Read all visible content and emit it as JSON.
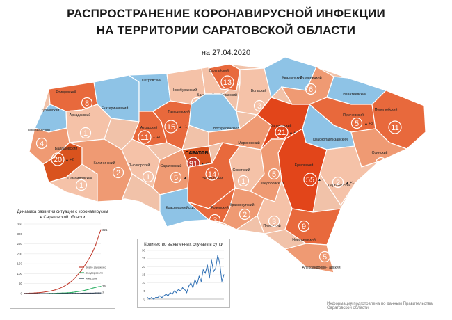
{
  "header": {
    "title_line1": "РАСПРОСТРАНЕНИЕ КОРОНАВИРУСНОЙ ИНФЕКЦИИ",
    "title_line2": "НА ТЕРРИТОРИИ САРАТОВСКОЙ ОБЛАСТИ",
    "date": "на 27.04.2020"
  },
  "colors": {
    "blue": "#8ec3e6",
    "light": "#f5c2a8",
    "mid": "#ef9a73",
    "dark": "#e8693c",
    "darker": "#d9531e",
    "hot": "#e2451a",
    "border": "#ffffff"
  },
  "districts": [
    {
      "name": "Ртищевский",
      "count": "8",
      "inc": "",
      "tone": "dark"
    },
    {
      "name": "Турковский",
      "count": "",
      "inc": "",
      "tone": "blue"
    },
    {
      "name": "Екатериновский",
      "count": "",
      "inc": "",
      "tone": "blue"
    },
    {
      "name": "Аркадакский",
      "count": "1",
      "inc": "",
      "tone": "light"
    },
    {
      "name": "Романовский",
      "count": "4",
      "inc": "",
      "tone": "mid"
    },
    {
      "name": "Балашовский",
      "count": "20",
      "inc": "+2",
      "tone": "darker"
    },
    {
      "name": "Самойловский",
      "count": "1",
      "inc": "",
      "tone": "light"
    },
    {
      "name": "Калининский",
      "count": "2",
      "inc": "",
      "tone": "mid"
    },
    {
      "name": "Петровский",
      "count": "",
      "inc": "",
      "tone": "blue"
    },
    {
      "name": "Аткарский",
      "count": "11",
      "inc": "+1",
      "tone": "dark"
    },
    {
      "name": "Лысогорский",
      "count": "1",
      "inc": "",
      "tone": "light"
    },
    {
      "name": "Новобурасский",
      "count": "1",
      "inc": "",
      "tone": "light"
    },
    {
      "name": "Татищевский",
      "count": "15",
      "inc": "+1",
      "tone": "dark"
    },
    {
      "name": "Базарно-Карабулакский",
      "count": "1",
      "inc": "",
      "tone": "light"
    },
    {
      "name": "Балтайский",
      "count": "13",
      "inc": "",
      "tone": "dark"
    },
    {
      "name": "Вольский",
      "count": "3",
      "inc": "",
      "tone": "light"
    },
    {
      "name": "Воскресенский",
      "count": "",
      "inc": "",
      "tone": "blue"
    },
    {
      "name": "Саратовский",
      "count": "5",
      "inc": "+1",
      "tone": "mid"
    },
    {
      "name": "Саратов",
      "count": "91",
      "inc": "+3",
      "tone": "darker"
    },
    {
      "name": "Энгельсский",
      "count": "14",
      "inc": "",
      "tone": "dark"
    },
    {
      "name": "Марксовский",
      "count": "4",
      "inc": "+1",
      "tone": "mid"
    },
    {
      "name": "Хвалынский",
      "count": "",
      "inc": "",
      "tone": "blue"
    },
    {
      "name": "Духовницкий",
      "count": "6",
      "inc": "",
      "tone": "mid"
    },
    {
      "name": "Ивантеевский",
      "count": "",
      "inc": "",
      "tone": "blue"
    },
    {
      "name": "Балаковский",
      "count": "21",
      "inc": "+4",
      "tone": "hot"
    },
    {
      "name": "Пугачевский",
      "count": "5",
      "inc": "+3",
      "tone": "dark"
    },
    {
      "name": "Перелюбский",
      "count": "11",
      "inc": "",
      "tone": "dark"
    },
    {
      "name": "Краснопартизанский",
      "count": "",
      "inc": "",
      "tone": "blue"
    },
    {
      "name": "Озинский",
      "count": "3",
      "inc": "",
      "tone": "mid"
    },
    {
      "name": "Ершовский",
      "count": "55",
      "inc": "+5",
      "tone": "hot"
    },
    {
      "name": "Дергачевский",
      "count": "2",
      "inc": "+1",
      "tone": "light"
    },
    {
      "name": "Советский",
      "count": "1",
      "inc": "",
      "tone": "light"
    },
    {
      "name": "Федоровский",
      "count": "5",
      "inc": "",
      "tone": "mid"
    },
    {
      "name": "Красноармейский",
      "count": "",
      "inc": "",
      "tone": "blue"
    },
    {
      "name": "Ровенский",
      "count": "3",
      "inc": "",
      "tone": "dark"
    },
    {
      "name": "Краснокутский",
      "count": "2",
      "inc": "",
      "tone": "mid"
    },
    {
      "name": "Питерский",
      "count": "3",
      "inc": "",
      "tone": "light"
    },
    {
      "name": "Новоузенский",
      "count": "9",
      "inc": "",
      "tone": "dark"
    },
    {
      "name": "Александрово-Гайский",
      "count": "5",
      "inc": "",
      "tone": "mid"
    }
  ],
  "chart1": {
    "title_line1": "Динамика развития ситуации с коронавирусом",
    "title_line2": "в Саратовской области",
    "chart_data": {
      "type": "line",
      "yticks": [
        "0",
        "50",
        "100",
        "150",
        "200",
        "250",
        "300",
        "350"
      ],
      "ylim": [
        0,
        350
      ],
      "series": [
        {
          "name": "Всего заражено",
          "color": "#c0392b",
          "values": [
            1,
            1,
            2,
            2,
            3,
            4,
            5,
            6,
            8,
            10,
            12,
            15,
            18,
            22,
            27,
            33,
            40,
            48,
            57,
            68,
            80,
            95,
            110,
            128,
            147,
            168,
            190,
            215,
            245,
            285,
            321
          ],
          "end_label": "321"
        },
        {
          "name": "Выздоровело",
          "color": "#27ae60",
          "values": [
            0,
            0,
            0,
            0,
            0,
            0,
            0,
            0,
            0,
            0,
            1,
            1,
            1,
            2,
            2,
            3,
            3,
            4,
            5,
            6,
            8,
            10,
            12,
            14,
            17,
            20,
            24,
            28,
            31,
            34,
            36
          ],
          "end_label": "36"
        },
        {
          "name": "Умершие",
          "color": "#2c3e50",
          "values": [
            0,
            0,
            0,
            0,
            0,
            0,
            0,
            0,
            0,
            0,
            0,
            0,
            0,
            0,
            1,
            1,
            1,
            1,
            1,
            1,
            1,
            1,
            1,
            2,
            2,
            2,
            2,
            2,
            3,
            3,
            3
          ],
          "end_label": "3"
        }
      ]
    }
  },
  "chart2": {
    "title": "Количество выявленных случаев в сутки",
    "chart_data": {
      "type": "line",
      "yticks": [
        "0",
        "5",
        "10",
        "15",
        "20",
        "25",
        "30"
      ],
      "ylim": [
        0,
        30
      ],
      "series": [
        {
          "name": "",
          "color": "#2e6fb4",
          "values": [
            1,
            0,
            1,
            0,
            1,
            1,
            2,
            1,
            2,
            3,
            2,
            4,
            3,
            5,
            4,
            6,
            5,
            7,
            6,
            4,
            8,
            10,
            7,
            12,
            9,
            14,
            11,
            18,
            16,
            21,
            13,
            24,
            17,
            19,
            27,
            22,
            11,
            15
          ]
        }
      ]
    }
  },
  "footer": "Информация подготовлена по данным Правительства Саратовской области"
}
